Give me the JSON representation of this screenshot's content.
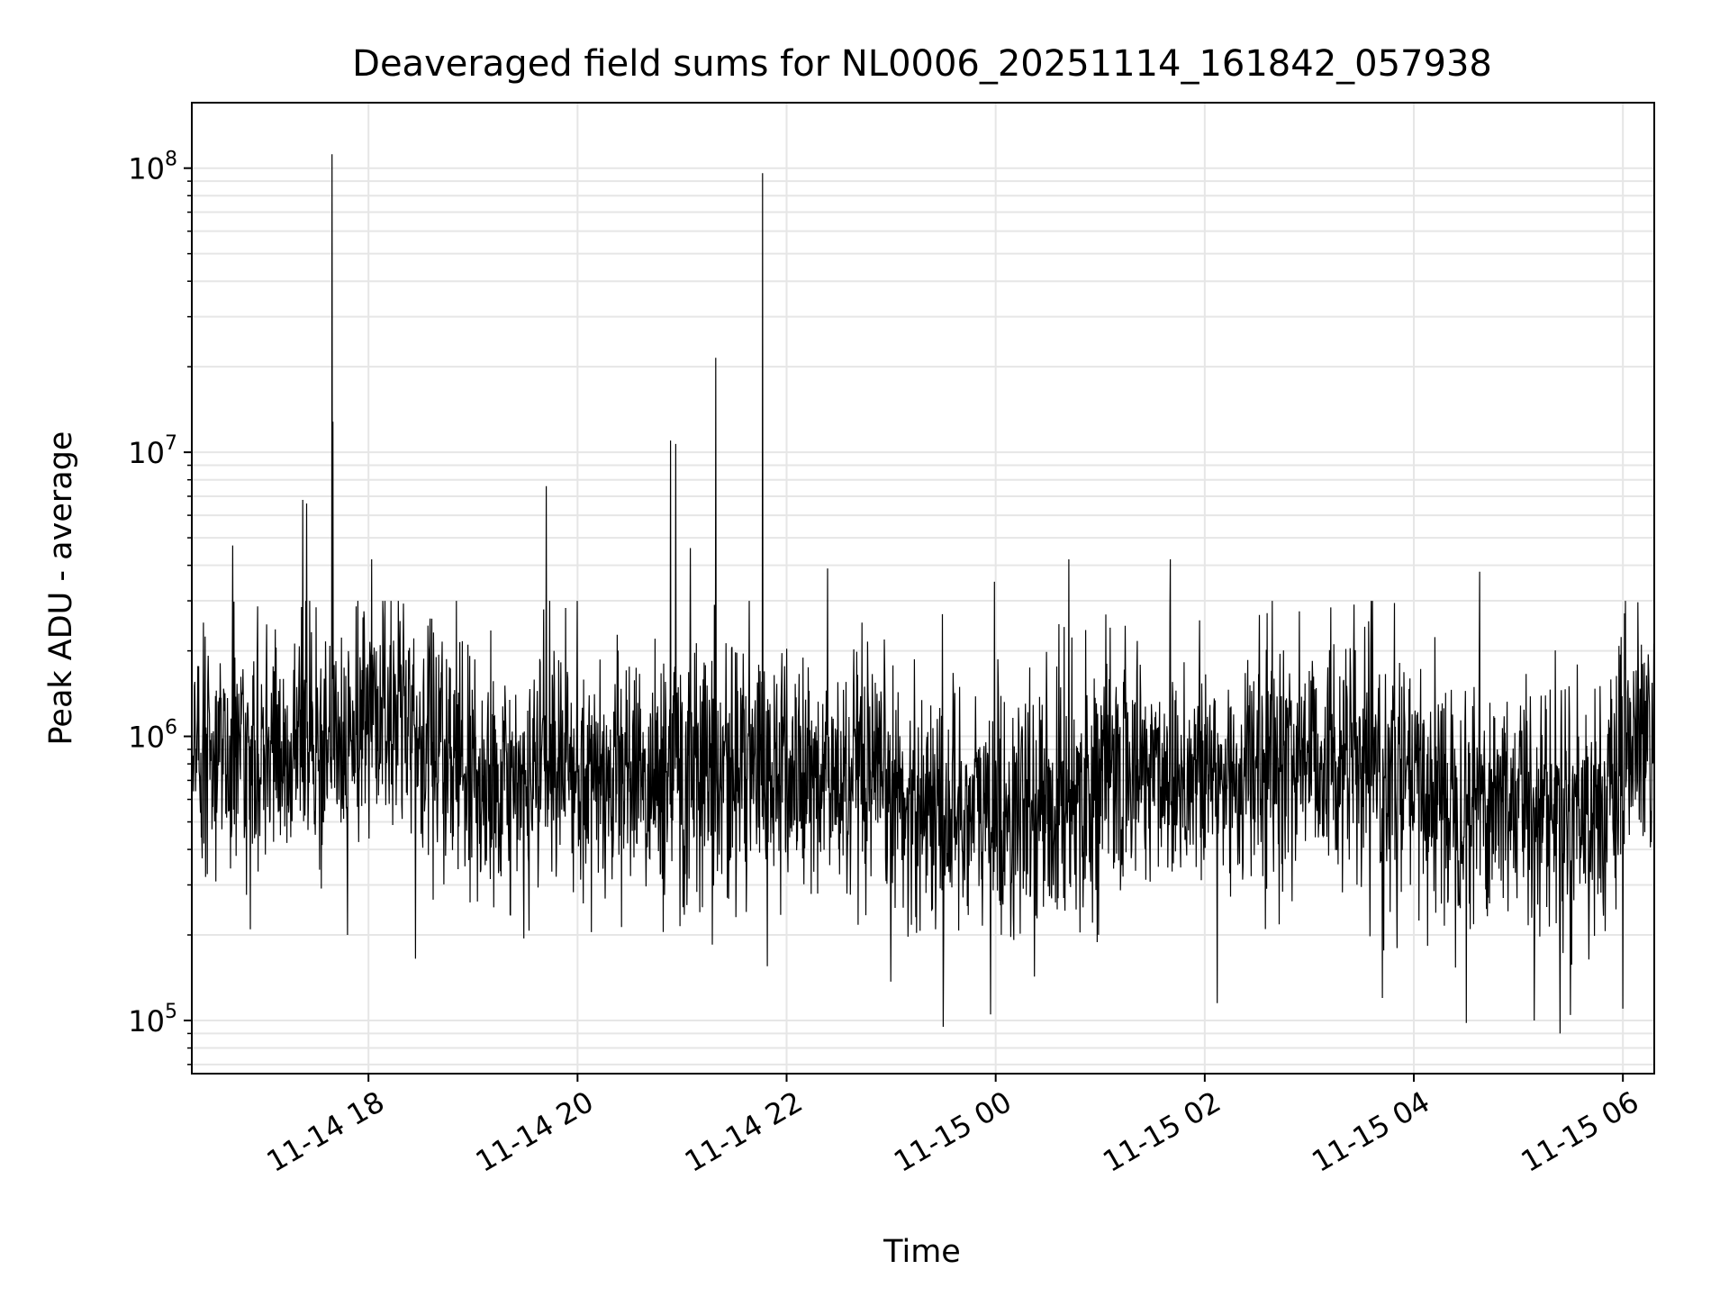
{
  "chart_data": {
    "type": "line",
    "title": "Deaveraged field sums for NL0006_20251114_161842_057938",
    "xlabel": "Time",
    "ylabel": "Peak ADU - average",
    "yscale": "log",
    "ylim": [
      65000,
      170000000
    ],
    "xlim_hours": [
      16.31,
      30.3
    ],
    "grid": true,
    "x_ticks": [
      {
        "label": "11-14 18",
        "hour": 18
      },
      {
        "label": "11-14 20",
        "hour": 20
      },
      {
        "label": "11-14 22",
        "hour": 22
      },
      {
        "label": "11-15 00",
        "hour": 24
      },
      {
        "label": "11-15 02",
        "hour": 26
      },
      {
        "label": "11-15 04",
        "hour": 28
      },
      {
        "label": "11-15 06",
        "hour": 30
      }
    ],
    "y_ticks": [
      {
        "base": "10",
        "exp": "5",
        "value": 100000
      },
      {
        "base": "10",
        "exp": "6",
        "value": 1000000
      },
      {
        "base": "10",
        "exp": "7",
        "value": 10000000
      },
      {
        "base": "10",
        "exp": "8",
        "value": 100000000
      }
    ],
    "series": [
      {
        "name": "deaveraged field sums",
        "color": "#000000",
        "baseline_profile": [
          {
            "hour": 16.3,
            "median": 800000
          },
          {
            "hour": 17.0,
            "median": 850000
          },
          {
            "hour": 17.6,
            "median": 1050000
          },
          {
            "hour": 18.2,
            "median": 1200000
          },
          {
            "hour": 18.9,
            "median": 750000
          },
          {
            "hour": 19.3,
            "median": 560000
          },
          {
            "hour": 19.8,
            "median": 800000
          },
          {
            "hour": 20.5,
            "median": 700000
          },
          {
            "hour": 21.3,
            "median": 800000
          },
          {
            "hour": 22.3,
            "median": 700000
          },
          {
            "hour": 23.5,
            "median": 560000
          },
          {
            "hour": 24.3,
            "median": 520000
          },
          {
            "hour": 25.0,
            "median": 720000
          },
          {
            "hour": 25.5,
            "median": 780000
          },
          {
            "hour": 26.2,
            "median": 700000
          },
          {
            "hour": 27.0,
            "median": 900000
          },
          {
            "hour": 28.0,
            "median": 650000
          },
          {
            "hour": 29.0,
            "median": 600000
          },
          {
            "hour": 29.9,
            "median": 550000
          },
          {
            "hour": 30.05,
            "median": 950000
          },
          {
            "hour": 30.3,
            "median": 900000
          }
        ],
        "spikes": [
          {
            "hour": 16.7,
            "value": 4700000
          },
          {
            "hour": 17.37,
            "value": 6800000
          },
          {
            "hour": 17.41,
            "value": 6600000
          },
          {
            "hour": 17.65,
            "value": 112000000
          },
          {
            "hour": 17.66,
            "value": 12800000
          },
          {
            "hour": 18.03,
            "value": 4200000
          },
          {
            "hour": 19.7,
            "value": 7600000
          },
          {
            "hour": 20.89,
            "value": 11000000
          },
          {
            "hour": 20.94,
            "value": 10700000
          },
          {
            "hour": 21.08,
            "value": 4600000
          },
          {
            "hour": 21.32,
            "value": 21500000
          },
          {
            "hour": 21.77,
            "value": 96000000
          },
          {
            "hour": 22.39,
            "value": 3900000
          },
          {
            "hour": 23.99,
            "value": 3500000
          },
          {
            "hour": 24.7,
            "value": 4200000
          },
          {
            "hour": 25.67,
            "value": 4200000
          },
          {
            "hour": 28.63,
            "value": 3800000
          },
          {
            "hour": 17.8,
            "value": 200000
          },
          {
            "hour": 18.45,
            "value": 165000
          },
          {
            "hour": 23.5,
            "value": 95000
          },
          {
            "hour": 23.95,
            "value": 105000
          },
          {
            "hour": 26.12,
            "value": 115000
          },
          {
            "hour": 27.7,
            "value": 120000
          },
          {
            "hour": 28.5,
            "value": 98000
          },
          {
            "hour": 29.15,
            "value": 100000
          },
          {
            "hour": 29.4,
            "value": 90000
          },
          {
            "hour": 30.0,
            "value": 110000
          }
        ]
      }
    ]
  }
}
